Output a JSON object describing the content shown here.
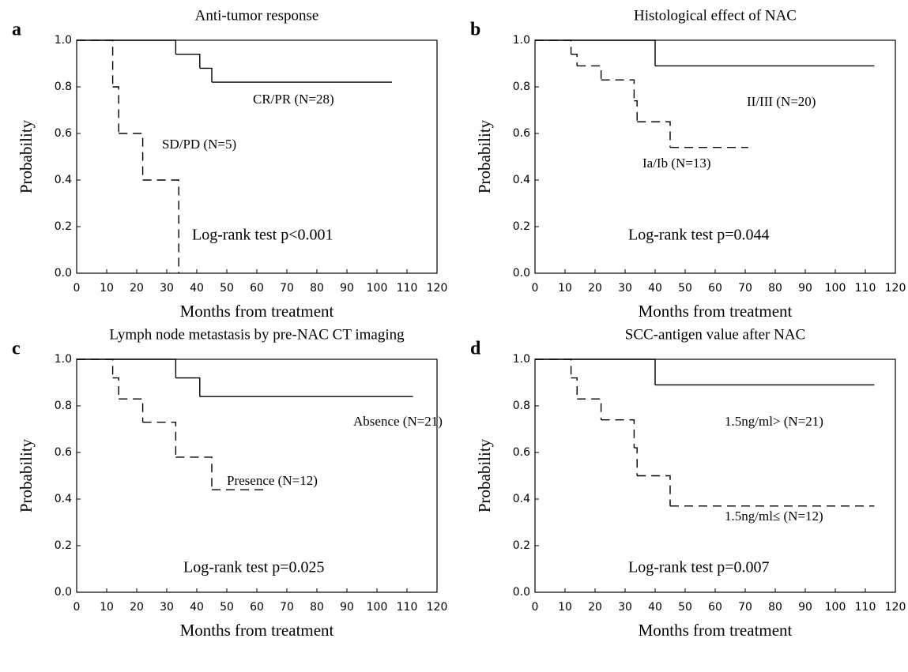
{
  "chart_data": [
    {
      "type": "step",
      "panel": "a",
      "title": "Anti-tumor response",
      "xlabel": "Months from treatment",
      "ylabel": "Probability",
      "annotation": "Log-rank test p<0.001",
      "xlim": [
        0,
        120
      ],
      "ylim": [
        0,
        1
      ],
      "xticks": [
        0,
        10,
        20,
        30,
        40,
        50,
        60,
        70,
        80,
        90,
        100,
        110,
        120
      ],
      "yticks": [
        {
          "value": 0,
          "label": "0.0"
        },
        0.2,
        0.4,
        0.6,
        0.8,
        {
          "value": 1,
          "label": "1.0"
        }
      ],
      "series": [
        {
          "name": "CR/PR (N=28)",
          "color": "#000000",
          "linestyle": "solid",
          "x": [
            0,
            33,
            41,
            45,
            105
          ],
          "values": [
            1,
            0.94,
            0.88,
            0.82,
            0.82
          ]
        },
        {
          "name": "SD/PD (N=5)",
          "color": "#000000",
          "linestyle": "dashed",
          "x": [
            0,
            12,
            14,
            22,
            34
          ],
          "values": [
            1,
            0.8,
            0.6,
            0.4,
            0
          ]
        }
      ]
    },
    {
      "type": "step",
      "panel": "b",
      "title": "Histological effect of NAC",
      "xlabel": "Months from treatment",
      "ylabel": "Probability",
      "annotation": "Log-rank test p=0.044",
      "xlim": [
        0,
        120
      ],
      "ylim": [
        0,
        1
      ],
      "xticks": [
        0,
        10,
        20,
        30,
        40,
        50,
        60,
        70,
        80,
        90,
        100,
        110,
        120
      ],
      "yticks": [
        {
          "value": 0,
          "label": "0.0"
        },
        0.2,
        0.4,
        0.6,
        0.8,
        {
          "value": 1,
          "label": "1.0"
        }
      ],
      "series": [
        {
          "name": "II/III (N=20)",
          "color": "#000000",
          "linestyle": "solid",
          "x": [
            0,
            40,
            113
          ],
          "values": [
            1,
            0.89,
            0.89
          ]
        },
        {
          "name": "Ia/Ib (N=13)",
          "color": "#000000",
          "linestyle": "dashed",
          "x": [
            0,
            12,
            14,
            22,
            33,
            34,
            45,
            71
          ],
          "values": [
            1,
            0.94,
            0.89,
            0.83,
            0.74,
            0.65,
            0.54,
            0.54
          ]
        }
      ]
    },
    {
      "type": "step",
      "panel": "c",
      "title": "Lymph node metastasis by pre-NAC CT imaging",
      "xlabel": "Months from treatment",
      "ylabel": "Probability",
      "annotation": "Log-rank test p=0.025",
      "xlim": [
        0,
        120
      ],
      "ylim": [
        0,
        1
      ],
      "xticks": [
        0,
        10,
        20,
        30,
        40,
        50,
        60,
        70,
        80,
        90,
        100,
        110,
        120
      ],
      "yticks": [
        {
          "value": 0,
          "label": "0.0"
        },
        0.2,
        0.4,
        0.6,
        0.8,
        {
          "value": 1,
          "label": "1.0"
        }
      ],
      "series": [
        {
          "name": "Absence (N=21)",
          "color": "#000000",
          "linestyle": "solid",
          "x": [
            0,
            33,
            41,
            112
          ],
          "values": [
            1,
            0.92,
            0.84,
            0.84
          ]
        },
        {
          "name": "Presence (N=12)",
          "color": "#000000",
          "linestyle": "dashed",
          "x": [
            0,
            12,
            14,
            22,
            33,
            45,
            63
          ],
          "values": [
            1,
            0.92,
            0.83,
            0.73,
            0.58,
            0.44,
            0.44
          ]
        }
      ]
    },
    {
      "type": "step",
      "panel": "d",
      "title": "SCC-antigen value after NAC",
      "xlabel": "Months from treatment",
      "ylabel": "Probability",
      "annotation": "Log-rank test p=0.007",
      "xlim": [
        0,
        120
      ],
      "ylim": [
        0,
        1
      ],
      "xticks": [
        0,
        10,
        20,
        30,
        40,
        50,
        60,
        70,
        80,
        90,
        100,
        110,
        120
      ],
      "yticks": [
        {
          "value": 0,
          "label": "0.0"
        },
        0.2,
        0.4,
        0.6,
        0.8,
        {
          "value": 1,
          "label": "1.0"
        }
      ],
      "series": [
        {
          "name": "1.5ng/ml> (N=21)",
          "color": "#000000",
          "linestyle": "solid",
          "x": [
            0,
            40,
            113
          ],
          "values": [
            1,
            0.89,
            0.89
          ]
        },
        {
          "name": "1.5ng/ml≤ (N=12)",
          "color": "#000000",
          "linestyle": "dashed",
          "x": [
            0,
            12,
            14,
            22,
            33,
            34,
            45,
            113
          ],
          "values": [
            1,
            0.92,
            0.83,
            0.74,
            0.62,
            0.5,
            0.37,
            0.37
          ]
        }
      ]
    }
  ]
}
